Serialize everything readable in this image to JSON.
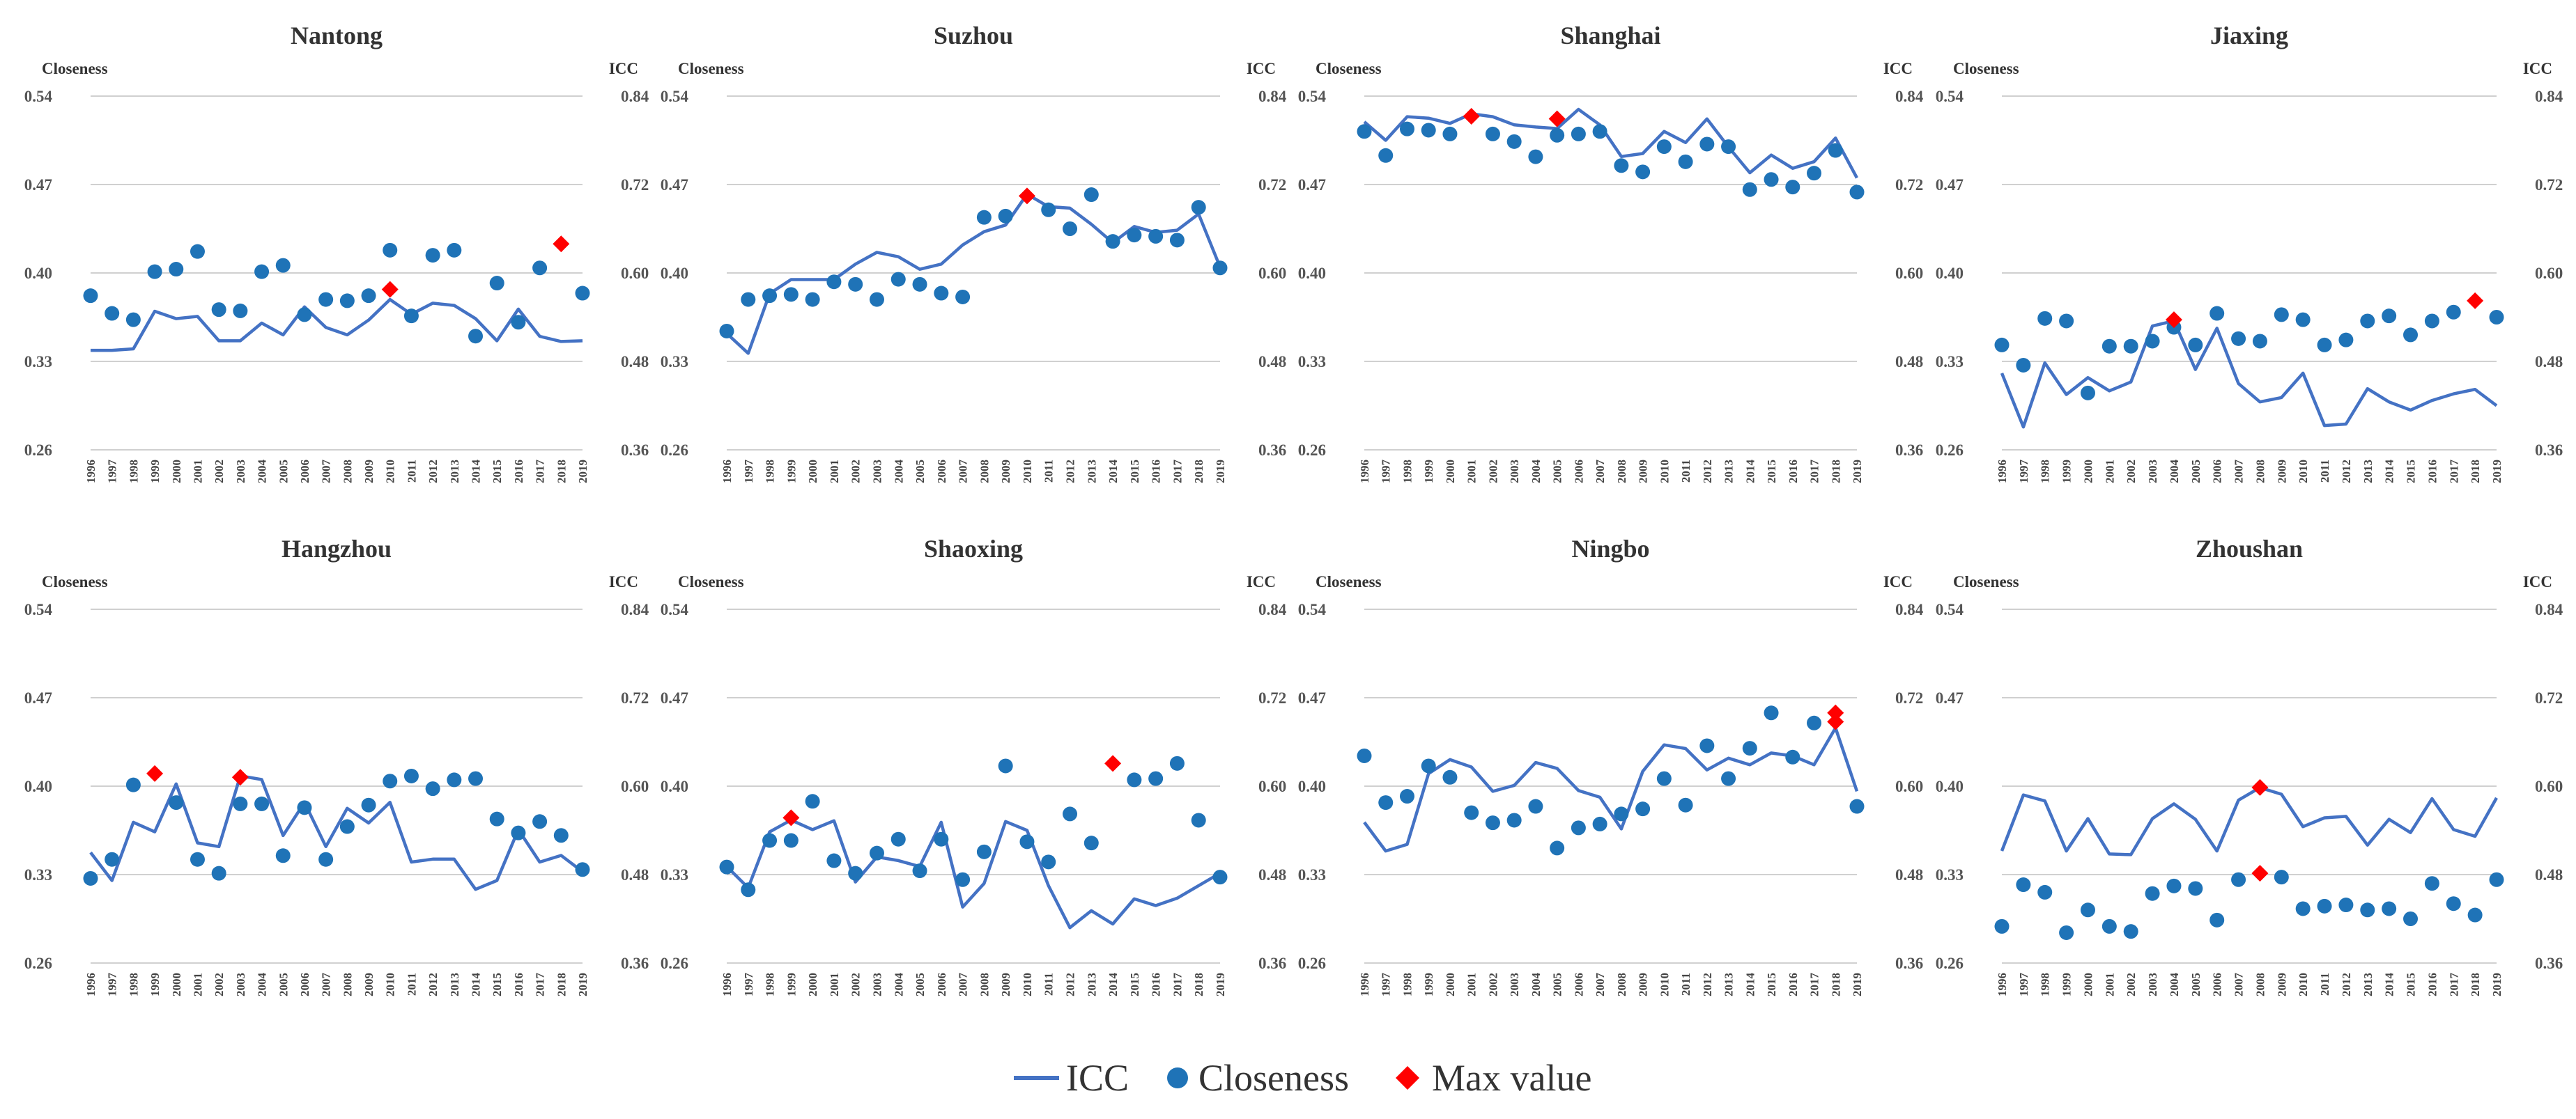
{
  "colors": {
    "icc_line": "#4472c4",
    "closeness_marker": "#1f73b7",
    "max_marker": "#ff0000",
    "gridline": "#d0d0d0"
  },
  "legend": [
    {
      "label": "ICC",
      "icon": "line-icon"
    },
    {
      "label": "Closeness",
      "icon": "circle-marker-icon"
    },
    {
      "label": "Max value",
      "icon": "diamond-marker-icon"
    }
  ],
  "chart_data": [
    {
      "type": "line",
      "title": "Nantong",
      "ylabel_left": "Closeness",
      "ylabel_right": "ICC",
      "ylim_left": [
        0.26,
        0.54
      ],
      "ylim_right": [
        0.36,
        0.84
      ],
      "yticks_left": [
        "0.26",
        "0.33",
        "0.40",
        "0.47",
        "0.54"
      ],
      "yticks_right": [
        "0.36",
        "0.48",
        "0.60",
        "0.72",
        "0.84"
      ],
      "x": [
        "1996",
        "1997",
        "1998",
        "1999",
        "2000",
        "2001",
        "2002",
        "2003",
        "2004",
        "2005",
        "2006",
        "2007",
        "2008",
        "2009",
        "2010",
        "2011",
        "2012",
        "2013",
        "2014",
        "2015",
        "2016",
        "2017",
        "2018",
        "2019"
      ],
      "series": [
        {
          "name": "ICC",
          "axis": "right",
          "values": [
            0.495,
            0.495,
            0.497,
            0.548,
            0.538,
            0.541,
            0.508,
            0.508,
            0.532,
            0.516,
            0.554,
            0.526,
            0.516,
            0.536,
            0.564,
            0.544,
            0.559,
            0.556,
            0.538,
            0.508,
            0.551,
            0.514,
            0.507,
            0.508
          ]
        },
        {
          "name": "Closeness",
          "axis": "left",
          "values": [
            0.382,
            0.368,
            0.363,
            0.401,
            0.403,
            0.417,
            0.371,
            0.37,
            0.401,
            0.406,
            0.367,
            0.379,
            0.378,
            0.382,
            0.418,
            0.366,
            0.414,
            0.418,
            0.35,
            0.392,
            0.361,
            0.404,
            null,
            0.384
          ]
        },
        {
          "name": "Max value",
          "axis": "left",
          "points": [
            {
              "x": "2010",
              "y": 0.387
            },
            {
              "x": "2018",
              "y": 0.423
            }
          ]
        }
      ]
    },
    {
      "type": "line",
      "title": "Suzhou",
      "ylabel_left": "Closeness",
      "ylabel_right": "ICC",
      "ylim_left": [
        0.26,
        0.54
      ],
      "ylim_right": [
        0.36,
        0.84
      ],
      "yticks_left": [
        "0.26",
        "0.33",
        "0.40",
        "0.47",
        "0.54"
      ],
      "yticks_right": [
        "0.36",
        "0.48",
        "0.60",
        "0.72",
        "0.84"
      ],
      "x": [
        "1996",
        "1997",
        "1998",
        "1999",
        "2000",
        "2001",
        "2002",
        "2003",
        "2004",
        "2005",
        "2006",
        "2007",
        "2008",
        "2009",
        "2010",
        "2011",
        "2012",
        "2013",
        "2014",
        "2015",
        "2016",
        "2017",
        "2018",
        "2019"
      ],
      "series": [
        {
          "name": "ICC",
          "axis": "right",
          "values": [
            0.518,
            0.491,
            0.572,
            0.591,
            0.591,
            0.591,
            0.612,
            0.628,
            0.622,
            0.605,
            0.612,
            0.638,
            0.656,
            0.665,
            0.707,
            0.69,
            0.688,
            0.666,
            0.641,
            0.663,
            0.655,
            0.658,
            0.68,
            0.608
          ]
        },
        {
          "name": "Closeness",
          "axis": "left",
          "values": [
            0.354,
            0.379,
            0.382,
            0.383,
            0.379,
            0.393,
            0.391,
            0.379,
            0.395,
            0.391,
            0.384,
            0.381,
            0.444,
            0.445,
            null,
            0.45,
            0.435,
            0.462,
            0.425,
            0.43,
            0.429,
            0.426,
            0.452,
            0.404
          ]
        },
        {
          "name": "Max value",
          "axis": "left",
          "points": [
            {
              "x": "2010",
              "y": 0.461
            }
          ]
        }
      ]
    },
    {
      "type": "line",
      "title": "Shanghai",
      "ylabel_left": "Closeness",
      "ylabel_right": "ICC",
      "ylim_left": [
        0.26,
        0.54
      ],
      "ylim_right": [
        0.36,
        0.84
      ],
      "yticks_left": [
        "0.26",
        "0.33",
        "0.40",
        "0.47",
        "0.54"
      ],
      "yticks_right": [
        "0.36",
        "0.48",
        "0.60",
        "0.72",
        "0.84"
      ],
      "x": [
        "1996",
        "1997",
        "1998",
        "1999",
        "2000",
        "2001",
        "2002",
        "2003",
        "2004",
        "2005",
        "2006",
        "2007",
        "2008",
        "2009",
        "2010",
        "2011",
        "2012",
        "2013",
        "2014",
        "2015",
        "2016",
        "2017",
        "2018",
        "2019"
      ],
      "series": [
        {
          "name": "ICC",
          "axis": "right",
          "values": [
            0.805,
            0.78,
            0.812,
            0.81,
            0.803,
            0.816,
            0.812,
            0.801,
            0.798,
            0.796,
            0.822,
            0.801,
            0.758,
            0.762,
            0.792,
            0.777,
            0.809,
            0.771,
            0.736,
            0.76,
            0.742,
            0.751,
            0.783,
            0.729
          ]
        },
        {
          "name": "Closeness",
          "axis": "left",
          "values": [
            0.512,
            0.493,
            0.514,
            0.513,
            0.51,
            null,
            0.51,
            0.504,
            0.492,
            0.509,
            0.51,
            0.512,
            0.485,
            0.48,
            0.5,
            0.488,
            0.502,
            0.5,
            0.466,
            0.474,
            0.468,
            0.479,
            0.497,
            0.464
          ]
        },
        {
          "name": "Max value",
          "axis": "left",
          "points": [
            {
              "x": "2001",
              "y": 0.524
            },
            {
              "x": "2005",
              "y": 0.522
            }
          ]
        }
      ]
    },
    {
      "type": "line",
      "title": "Jiaxing",
      "ylabel_left": "Closeness",
      "ylabel_right": "ICC",
      "ylim_left": [
        0.26,
        0.54
      ],
      "ylim_right": [
        0.36,
        0.84
      ],
      "yticks_left": [
        "0.26",
        "0.33",
        "0.40",
        "0.47",
        "0.54"
      ],
      "yticks_right": [
        "0.36",
        "0.48",
        "0.60",
        "0.72",
        "0.84"
      ],
      "x": [
        "1996",
        "1997",
        "1998",
        "1999",
        "2000",
        "2001",
        "2002",
        "2003",
        "2004",
        "2005",
        "2006",
        "2007",
        "2008",
        "2009",
        "2010",
        "2011",
        "2012",
        "2013",
        "2014",
        "2015",
        "2016",
        "2017",
        "2018",
        "2019"
      ],
      "series": [
        {
          "name": "ICC",
          "axis": "right",
          "values": [
            0.464,
            0.391,
            0.478,
            0.435,
            0.458,
            0.44,
            0.452,
            0.528,
            0.535,
            0.469,
            0.525,
            0.45,
            0.425,
            0.431,
            0.464,
            0.393,
            0.395,
            0.443,
            0.425,
            0.414,
            0.427,
            0.436,
            0.442,
            0.42
          ]
        },
        {
          "name": "Closeness",
          "axis": "left",
          "values": [
            0.343,
            0.327,
            0.364,
            0.362,
            0.305,
            0.342,
            0.342,
            0.346,
            0.357,
            0.343,
            0.368,
            0.348,
            0.346,
            0.367,
            0.363,
            0.343,
            0.347,
            0.362,
            0.366,
            0.351,
            0.362,
            0.369,
            null,
            0.365
          ]
        },
        {
          "name": "Max value",
          "axis": "left",
          "points": [
            {
              "x": "2004",
              "y": 0.363
            },
            {
              "x": "2018",
              "y": 0.378
            }
          ]
        }
      ]
    },
    {
      "type": "line",
      "title": "Hangzhou",
      "ylabel_left": "Closeness",
      "ylabel_right": "ICC",
      "ylim_left": [
        0.26,
        0.54
      ],
      "ylim_right": [
        0.36,
        0.84
      ],
      "yticks_left": [
        "0.26",
        "0.33",
        "0.40",
        "0.47",
        "0.54"
      ],
      "yticks_right": [
        "0.36",
        "0.48",
        "0.60",
        "0.72",
        "0.84"
      ],
      "x": [
        "1996",
        "1997",
        "1998",
        "1999",
        "2000",
        "2001",
        "2002",
        "2003",
        "2004",
        "2005",
        "2006",
        "2007",
        "2008",
        "2009",
        "2010",
        "2011",
        "2012",
        "2013",
        "2014",
        "2015",
        "2016",
        "2017",
        "2018",
        "2019"
      ],
      "series": [
        {
          "name": "ICC",
          "axis": "right",
          "values": [
            0.51,
            0.472,
            0.551,
            0.538,
            0.603,
            0.523,
            0.518,
            0.614,
            0.609,
            0.533,
            0.578,
            0.518,
            0.57,
            0.55,
            0.578,
            0.497,
            0.501,
            0.501,
            0.46,
            0.472,
            0.541,
            0.497,
            0.506,
            0.484
          ]
        },
        {
          "name": "Closeness",
          "axis": "left",
          "values": [
            0.327,
            0.342,
            0.401,
            null,
            0.387,
            0.342,
            0.331,
            0.386,
            0.386,
            0.345,
            0.383,
            0.342,
            0.368,
            0.385,
            0.404,
            0.408,
            0.398,
            0.405,
            0.406,
            0.374,
            0.363,
            0.372,
            0.361,
            0.334
          ]
        },
        {
          "name": "Max value",
          "axis": "left",
          "points": [
            {
              "x": "1999",
              "y": 0.41
            },
            {
              "x": "2003",
              "y": 0.407
            }
          ]
        }
      ]
    },
    {
      "type": "line",
      "title": "Shaoxing",
      "ylabel_left": "Closeness",
      "ylabel_right": "ICC",
      "ylim_left": [
        0.26,
        0.54
      ],
      "ylim_right": [
        0.36,
        0.84
      ],
      "yticks_left": [
        "0.26",
        "0.33",
        "0.40",
        "0.47",
        "0.54"
      ],
      "yticks_right": [
        "0.36",
        "0.48",
        "0.60",
        "0.72",
        "0.84"
      ],
      "x": [
        "1996",
        "1997",
        "1998",
        "1999",
        "2000",
        "2001",
        "2002",
        "2003",
        "2004",
        "2005",
        "2006",
        "2007",
        "2008",
        "2009",
        "2010",
        "2011",
        "2012",
        "2013",
        "2014",
        "2015",
        "2016",
        "2017",
        "2018",
        "2019"
      ],
      "series": [
        {
          "name": "ICC",
          "axis": "right",
          "values": [
            0.491,
            0.462,
            0.538,
            0.554,
            0.541,
            0.553,
            0.47,
            0.504,
            0.499,
            0.491,
            0.551,
            0.436,
            0.468,
            0.552,
            0.54,
            0.465,
            0.408,
            0.431,
            0.413,
            0.447,
            0.438,
            0.448,
            0.465,
            0.482
          ]
        },
        {
          "name": "Closeness",
          "axis": "left",
          "values": [
            0.336,
            0.318,
            0.357,
            0.357,
            0.388,
            0.341,
            0.331,
            0.347,
            0.358,
            0.333,
            0.358,
            0.326,
            0.348,
            0.416,
            0.356,
            0.34,
            0.378,
            0.355,
            null,
            0.405,
            0.406,
            0.418,
            0.373,
            0.328
          ]
        },
        {
          "name": "Max value",
          "axis": "left",
          "points": [
            {
              "x": "1999",
              "y": 0.375
            },
            {
              "x": "2014",
              "y": 0.418
            }
          ]
        }
      ]
    },
    {
      "type": "line",
      "title": "Ningbo",
      "ylabel_left": "Closeness",
      "ylabel_right": "ICC",
      "ylim_left": [
        0.26,
        0.54
      ],
      "ylim_right": [
        0.36,
        0.84
      ],
      "yticks_left": [
        "0.26",
        "0.33",
        "0.40",
        "0.47",
        "0.54"
      ],
      "yticks_right": [
        "0.36",
        "0.48",
        "0.60",
        "0.72",
        "0.84"
      ],
      "x": [
        "1996",
        "1997",
        "1998",
        "1999",
        "2000",
        "2001",
        "2002",
        "2003",
        "2004",
        "2005",
        "2006",
        "2007",
        "2008",
        "2009",
        "2010",
        "2011",
        "2012",
        "2013",
        "2014",
        "2015",
        "2016",
        "2017",
        "2018",
        "2019"
      ],
      "series": [
        {
          "name": "ICC",
          "axis": "right",
          "values": [
            0.551,
            0.512,
            0.521,
            0.617,
            0.636,
            0.626,
            0.593,
            0.601,
            0.632,
            0.624,
            0.594,
            0.585,
            0.542,
            0.62,
            0.656,
            0.651,
            0.622,
            0.638,
            0.629,
            0.645,
            0.641,
            0.629,
            0.679,
            0.593
          ]
        },
        {
          "name": "Closeness",
          "axis": "left",
          "values": [
            0.424,
            0.387,
            0.392,
            0.416,
            0.407,
            0.379,
            0.371,
            0.373,
            0.384,
            0.351,
            0.367,
            0.37,
            0.378,
            0.382,
            0.406,
            0.385,
            0.432,
            0.406,
            0.43,
            0.458,
            0.423,
            0.45,
            null,
            0.384
          ]
        },
        {
          "name": "Max value",
          "axis": "left",
          "points": [
            {
              "x": "2018",
              "y": 0.458
            },
            {
              "x": "2018",
              "y": 0.451
            }
          ]
        }
      ]
    },
    {
      "type": "line",
      "title": "Zhoushan",
      "ylabel_left": "Closeness",
      "ylabel_right": "ICC",
      "ylim_left": [
        0.26,
        0.54
      ],
      "ylim_right": [
        0.36,
        0.84
      ],
      "yticks_left": [
        "0.26",
        "0.33",
        "0.40",
        "0.47",
        "0.54"
      ],
      "yticks_right": [
        "0.36",
        "0.48",
        "0.60",
        "0.72",
        "0.84"
      ],
      "x": [
        "1996",
        "1997",
        "1998",
        "1999",
        "2000",
        "2001",
        "2002",
        "2003",
        "2004",
        "2005",
        "2006",
        "2007",
        "2008",
        "2009",
        "2010",
        "2011",
        "2012",
        "2013",
        "2014",
        "2015",
        "2016",
        "2017",
        "2018",
        "2019"
      ],
      "series": [
        {
          "name": "ICC",
          "axis": "right",
          "values": [
            0.512,
            0.588,
            0.58,
            0.512,
            0.556,
            0.508,
            0.507,
            0.556,
            0.576,
            0.555,
            0.512,
            0.581,
            0.598,
            0.589,
            0.545,
            0.557,
            0.559,
            0.52,
            0.555,
            0.537,
            0.583,
            0.541,
            0.532,
            0.584
          ]
        },
        {
          "name": "Closeness",
          "axis": "left",
          "values": [
            0.289,
            0.322,
            0.316,
            0.284,
            0.302,
            0.289,
            0.285,
            0.315,
            0.321,
            0.319,
            0.294,
            0.326,
            null,
            0.328,
            0.303,
            0.305,
            0.306,
            0.302,
            0.303,
            0.295,
            0.323,
            0.307,
            0.298,
            0.326
          ]
        },
        {
          "name": "Max value",
          "axis": "left",
          "points": [
            {
              "x": "2008",
              "y": 0.399
            },
            {
              "x": "2008",
              "y": 0.331
            }
          ]
        }
      ]
    }
  ]
}
